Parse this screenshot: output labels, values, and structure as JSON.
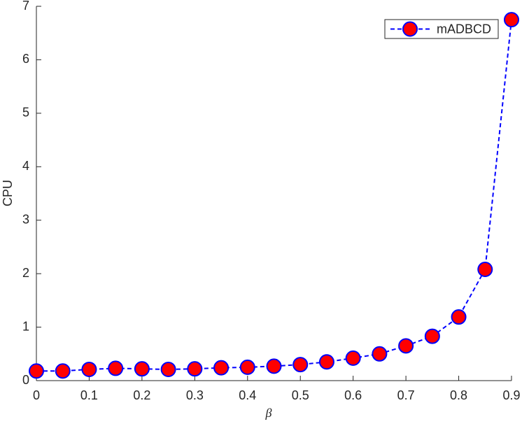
{
  "chart_data": {
    "type": "line",
    "x_label": "β",
    "y_label": "CPU",
    "x": [
      0,
      0.05,
      0.1,
      0.15,
      0.2,
      0.25,
      0.3,
      0.35,
      0.4,
      0.45,
      0.5,
      0.55,
      0.6,
      0.65,
      0.7,
      0.75,
      0.8,
      0.85,
      0.9
    ],
    "series": [
      {
        "name": "mADBCD",
        "color": "#0000ff",
        "marker_fill": "#ff0000",
        "values": [
          0.18,
          0.18,
          0.21,
          0.23,
          0.22,
          0.21,
          0.22,
          0.24,
          0.25,
          0.27,
          0.3,
          0.35,
          0.42,
          0.5,
          0.65,
          0.83,
          1.19,
          2.08,
          6.75
        ]
      }
    ],
    "xlim": [
      0,
      0.9
    ],
    "xticks": [
      0,
      0.1,
      0.2,
      0.3,
      0.4,
      0.5,
      0.6,
      0.7,
      0.8,
      0.9
    ],
    "ylim": [
      0,
      7
    ],
    "yticks": [
      0,
      1,
      2,
      3,
      4,
      5,
      6,
      7
    ],
    "grid": false,
    "legend": "top-right"
  }
}
